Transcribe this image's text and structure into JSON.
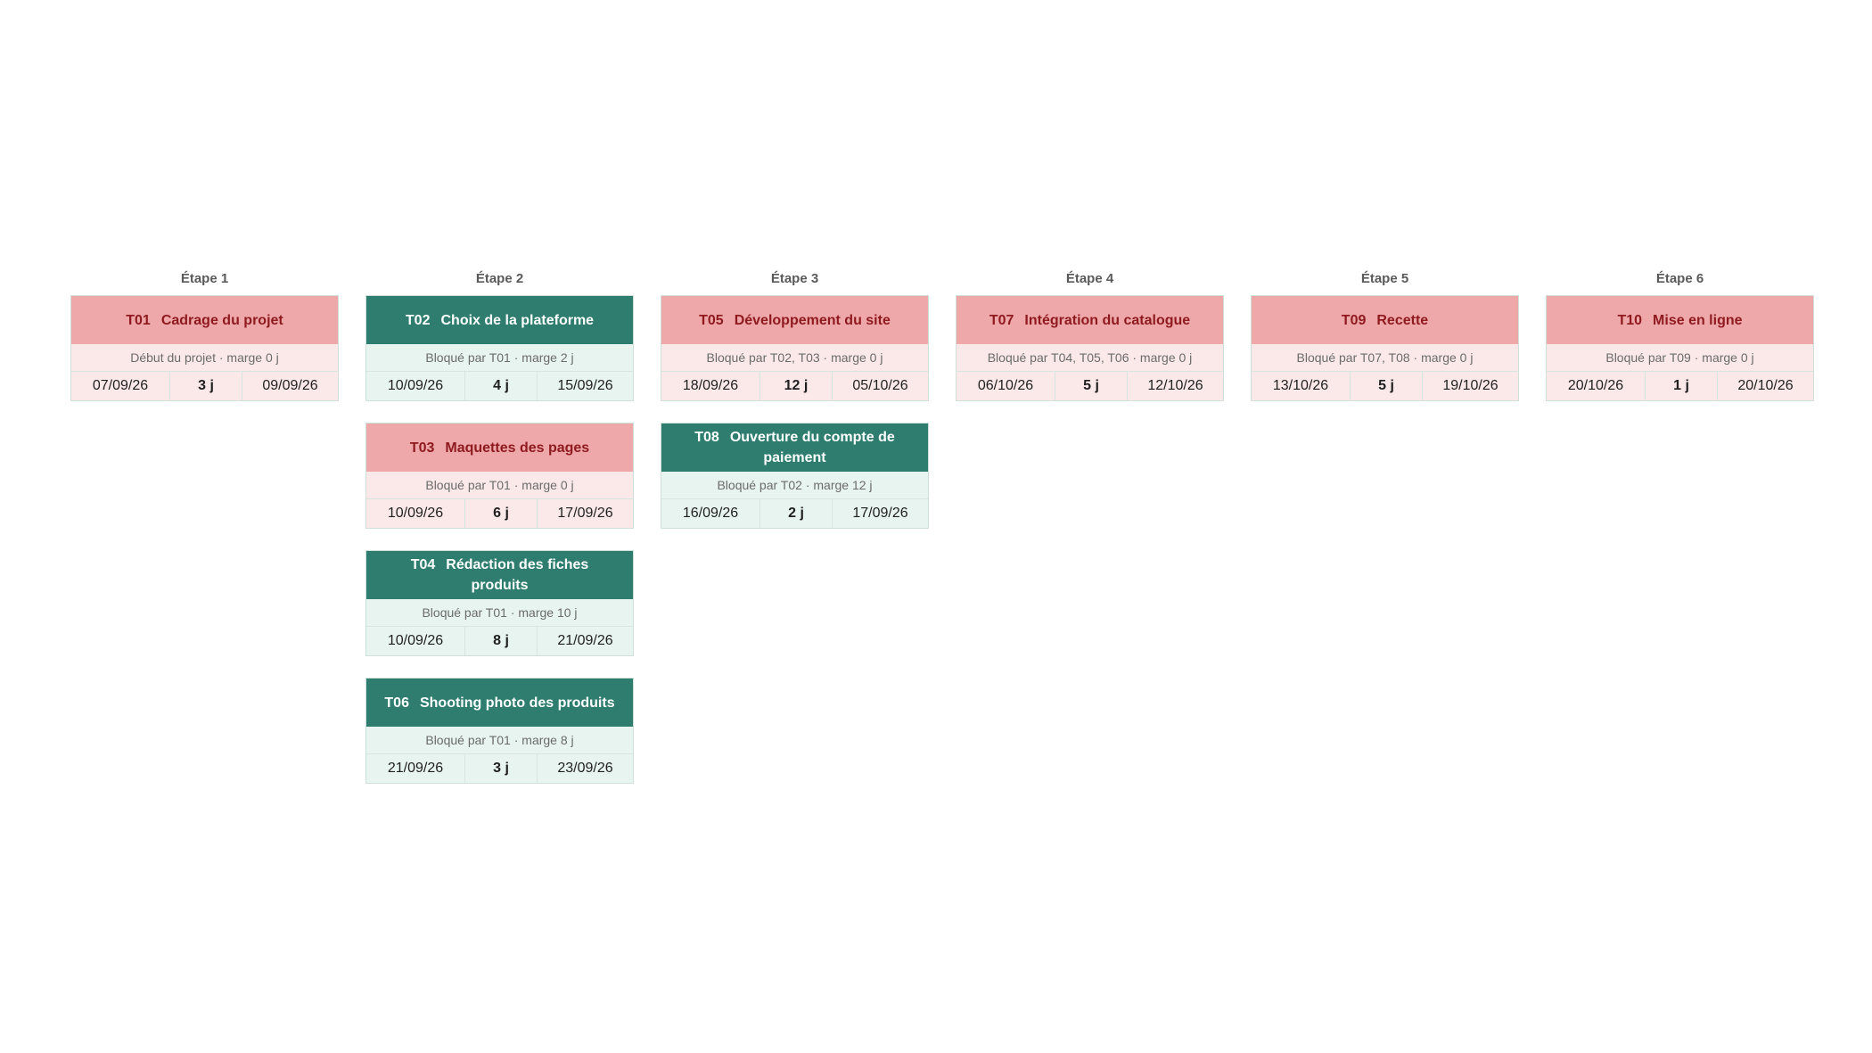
{
  "stages": [
    "Étape 1",
    "Étape 2",
    "Étape 3",
    "Étape 4",
    "Étape 5",
    "Étape 6"
  ],
  "colors": {
    "critical_header": "#efa8aa",
    "critical_text": "#8e1a1f",
    "slack_header": "#2e7d6f"
  },
  "tasks": [
    {
      "code": "T01",
      "name": "Cadrage du projet",
      "info": "Début du projet  ·  marge 0 j",
      "start": "07/09/26",
      "duration": "3 j",
      "end": "09/09/26",
      "critical": true
    },
    {
      "code": "T02",
      "name": "Choix de la plateforme",
      "info": "Bloqué par T01  ·  marge 2 j",
      "start": "10/09/26",
      "duration": "4 j",
      "end": "15/09/26",
      "critical": false
    },
    {
      "code": "T03",
      "name": "Maquettes des pages",
      "info": "Bloqué par T01  ·  marge 0 j",
      "start": "10/09/26",
      "duration": "6 j",
      "end": "17/09/26",
      "critical": true
    },
    {
      "code": "T04",
      "name": "Rédaction des fiches produits",
      "info": "Bloqué par T01  ·  marge 10 j",
      "start": "10/09/26",
      "duration": "8 j",
      "end": "21/09/26",
      "critical": false
    },
    {
      "code": "T06",
      "name": "Shooting photo des produits",
      "info": "Bloqué par T01  ·  marge 8 j",
      "start": "21/09/26",
      "duration": "3 j",
      "end": "23/09/26",
      "critical": false
    },
    {
      "code": "T05",
      "name": "Développement du site",
      "info": "Bloqué par T02, T03  ·  marge 0 j",
      "start": "18/09/26",
      "duration": "12 j",
      "end": "05/10/26",
      "critical": true
    },
    {
      "code": "T08",
      "name": "Ouverture du compte de paiement",
      "info": "Bloqué par T02  ·  marge 12 j",
      "start": "16/09/26",
      "duration": "2 j",
      "end": "17/09/26",
      "critical": false
    },
    {
      "code": "T07",
      "name": "Intégration du catalogue",
      "info": "Bloqué par T04, T05, T06  ·  marge 0 j",
      "start": "06/10/26",
      "duration": "5 j",
      "end": "12/10/26",
      "critical": true
    },
    {
      "code": "T09",
      "name": "Recette",
      "info": "Bloqué par T07, T08  ·  marge 0 j",
      "start": "13/10/26",
      "duration": "5 j",
      "end": "19/10/26",
      "critical": true
    },
    {
      "code": "T10",
      "name": "Mise en ligne",
      "info": "Bloqué par T09  ·  marge 0 j",
      "start": "20/10/26",
      "duration": "1 j",
      "end": "20/10/26",
      "critical": true
    }
  ]
}
